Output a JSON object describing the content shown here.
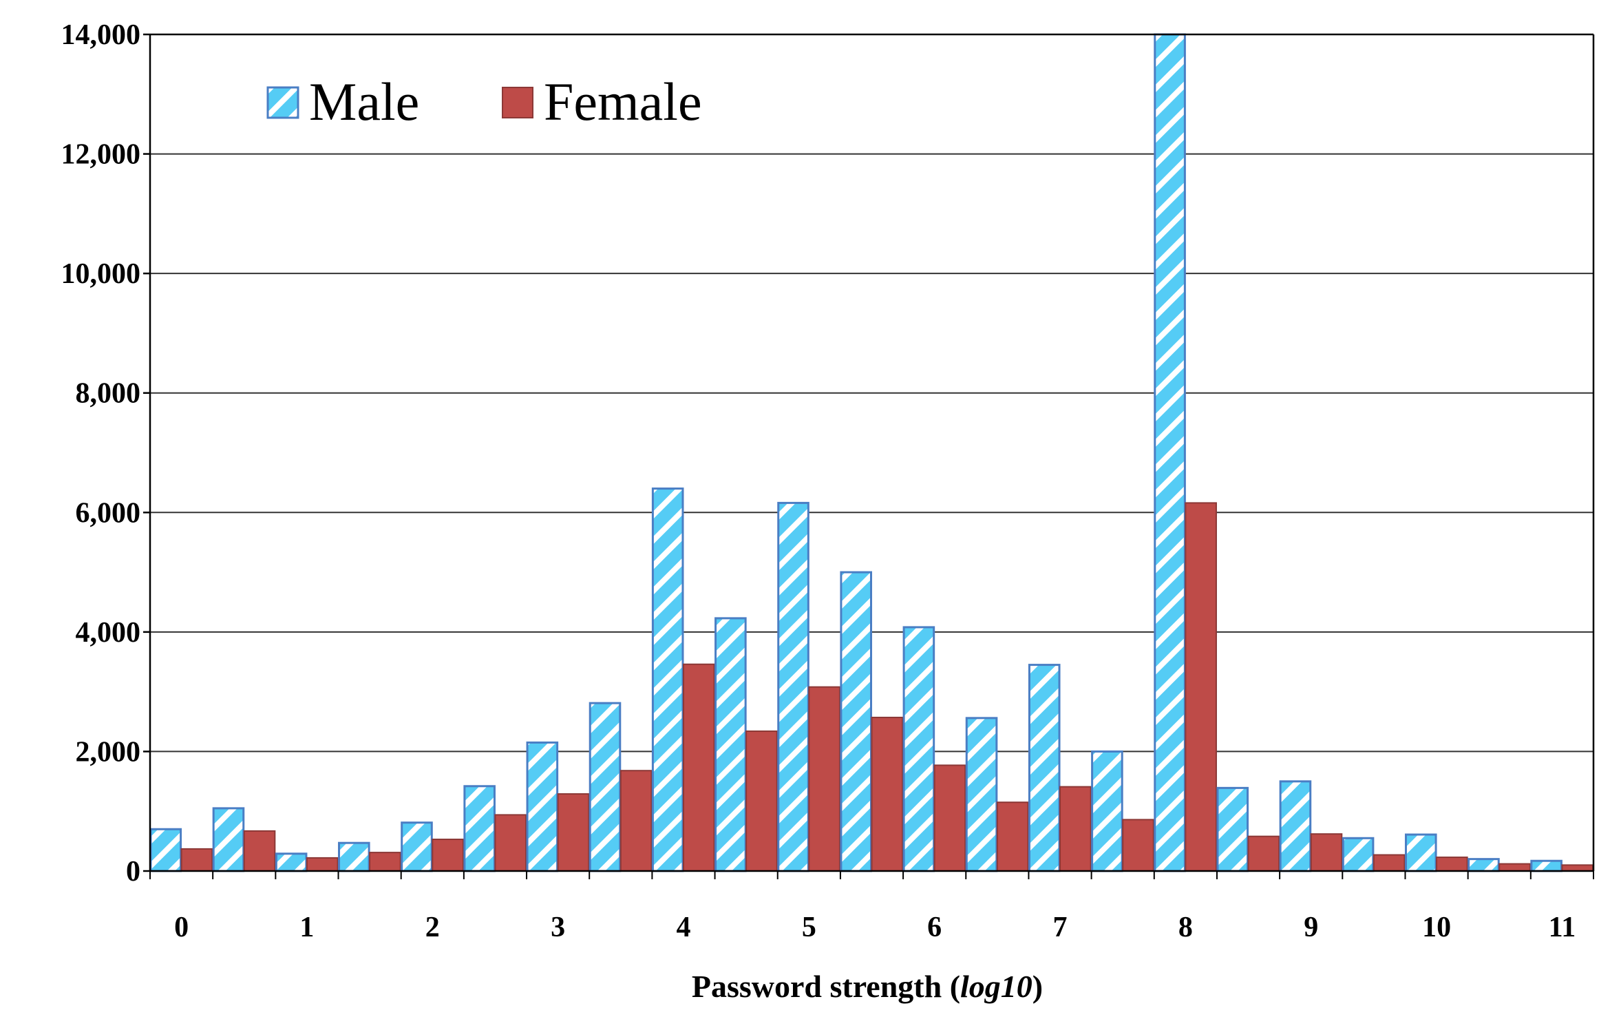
{
  "chart_data": {
    "type": "bar",
    "title": "",
    "xlabel": "Password  strength (",
    "xlabel_italic": "log10",
    "xlabel_suffix": ")",
    "ylabel": "",
    "ylim": [
      0,
      14000
    ],
    "y_ticks": [
      0,
      2000,
      4000,
      6000,
      8000,
      10000,
      12000,
      14000
    ],
    "y_tick_labels": [
      "0",
      "2,000",
      "4,000",
      "6,000",
      "8,000",
      "10,000",
      "12,000",
      "14,000"
    ],
    "x_tick_labels": [
      "0",
      "1",
      "2",
      "3",
      "4",
      "5",
      "6",
      "7",
      "8",
      "9",
      "10",
      "11"
    ],
    "x_range": [
      0,
      11.5
    ],
    "bin_width": 0.5,
    "x": [
      0,
      0.5,
      1,
      1.5,
      2,
      2.5,
      3,
      3.5,
      4,
      4.5,
      5,
      5.5,
      6,
      6.5,
      7,
      7.5,
      8,
      8.5,
      9,
      9.5,
      10,
      10.5,
      11
    ],
    "grid": true,
    "legend_position": "top-left",
    "series": [
      {
        "name": "Male",
        "pattern": "diagonal-stripes",
        "color": "#55CCF5",
        "stroke": "#4A7EC4",
        "values": [
          700,
          1050,
          290,
          470,
          810,
          1420,
          2150,
          2810,
          6400,
          4230,
          6160,
          5000,
          4080,
          2560,
          3450,
          2000,
          14000,
          1390,
          1500,
          550,
          610,
          200,
          170
        ]
      },
      {
        "name": "Female",
        "pattern": "solid",
        "color": "#BE4B48",
        "stroke": "#8C3836",
        "values": [
          370,
          670,
          220,
          310,
          530,
          940,
          1290,
          1680,
          3460,
          2340,
          3080,
          2570,
          1770,
          1150,
          1410,
          860,
          6160,
          580,
          620,
          270,
          230,
          120,
          100
        ]
      }
    ]
  }
}
